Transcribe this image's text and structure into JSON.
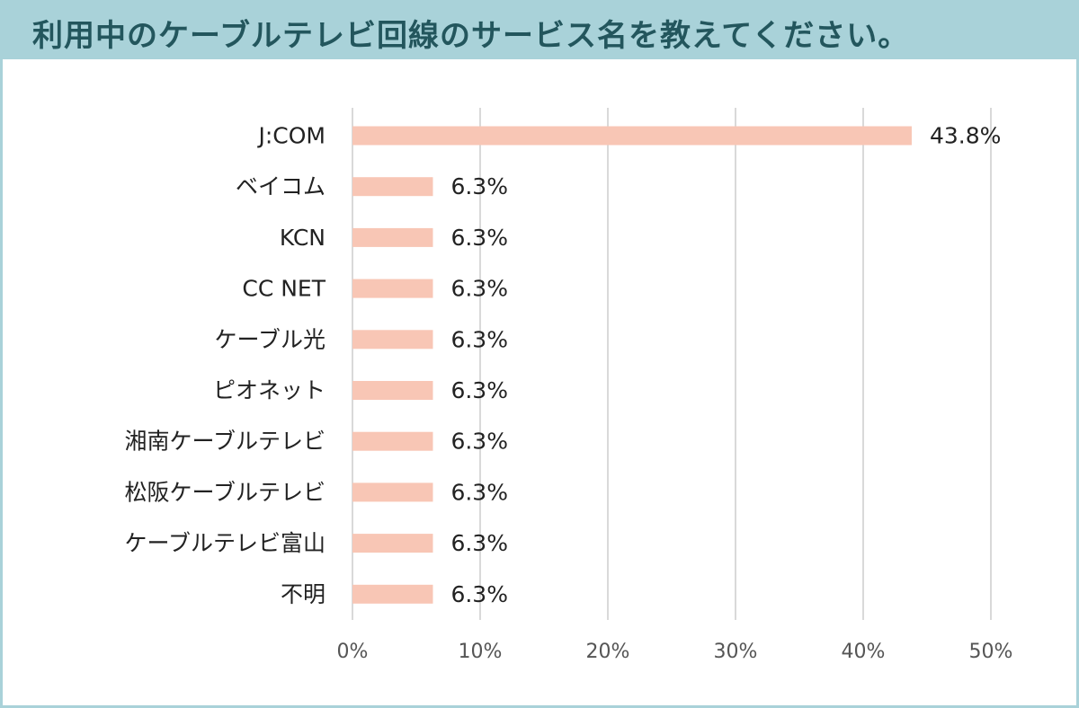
{
  "title": "利用中のケーブルテレビ回線のサービス名を教えてください。",
  "colors": {
    "bar": "#f8c6b5",
    "title_bg": "#a9d2d9",
    "title_text": "#23565d",
    "grid": "#d9d9d9"
  },
  "chart_data": {
    "type": "bar",
    "orientation": "horizontal",
    "categories": [
      "J:COM",
      "ベイコム",
      "KCN",
      "CC NET",
      "ケーブル光",
      "ピオネット",
      "湘南ケーブルテレビ",
      "松阪ケーブルテレビ",
      "ケーブルテレビ富山",
      "不明"
    ],
    "values": [
      43.8,
      6.3,
      6.3,
      6.3,
      6.3,
      6.3,
      6.3,
      6.3,
      6.3,
      6.3
    ],
    "value_labels": [
      "43.8%",
      "6.3%",
      "6.3%",
      "6.3%",
      "6.3%",
      "6.3%",
      "6.3%",
      "6.3%",
      "6.3%",
      "6.3%"
    ],
    "xlim": [
      0,
      50
    ],
    "xticks": [
      0,
      10,
      20,
      30,
      40,
      50
    ],
    "xtick_labels": [
      "0%",
      "10%",
      "20%",
      "30%",
      "40%",
      "50%"
    ],
    "grid": true,
    "legend": false
  }
}
